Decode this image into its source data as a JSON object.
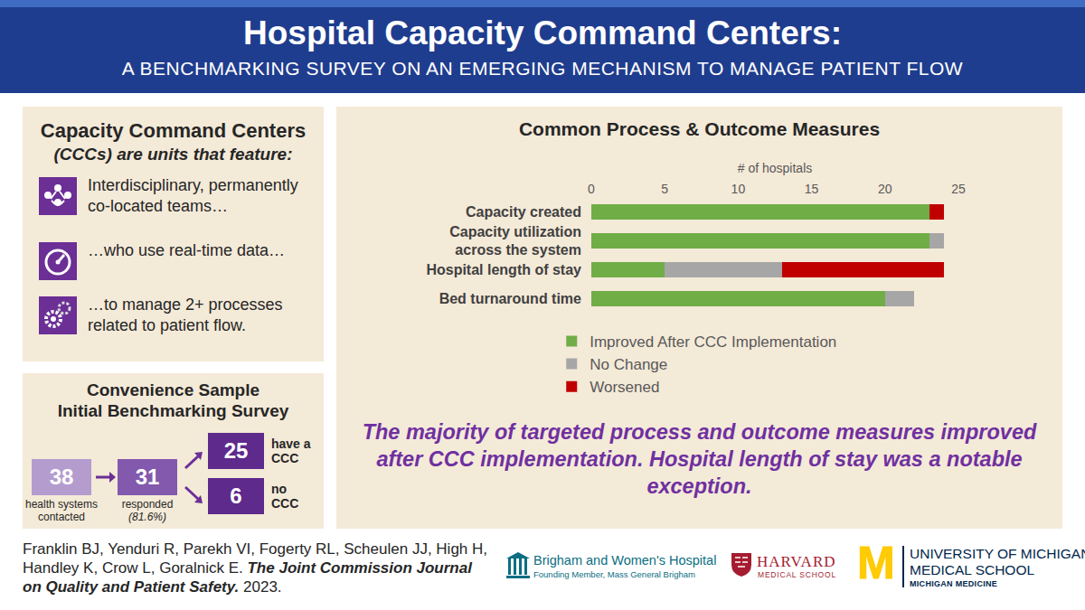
{
  "header": {
    "title": "Hospital Capacity Command Centers:",
    "subtitle": "A BENCHMARKING SURVEY ON AN EMERGING MECHANISM TO MANAGE PATIENT FLOW"
  },
  "definition": {
    "title": "Capacity Command Centers",
    "subtitle": "(CCCs) are units that feature:",
    "items": [
      "Interdisciplinary, permanently co-located teams…",
      "…who use real-time data…",
      "…to manage 2+ processes related to patient flow."
    ]
  },
  "sample": {
    "title_lines": [
      "Convenience Sample",
      "Initial Benchmarking Survey"
    ],
    "contacted": {
      "value": 38,
      "label_lines": [
        "health systems",
        "contacted"
      ]
    },
    "responded": {
      "value": 31,
      "label_lines": [
        "responded",
        "(81.6%)"
      ]
    },
    "have": {
      "value": 25,
      "label_lines": [
        "have a",
        "CCC"
      ]
    },
    "none": {
      "value": 6,
      "label_lines": [
        "no",
        "CCC"
      ]
    }
  },
  "chart_data": {
    "type": "bar",
    "orientation": "horizontal",
    "stacked": true,
    "title": "Common Process & Outcome Measures",
    "xlabel": "# of hospitals",
    "categories": [
      "Capacity created",
      "Capacity utilization across the system",
      "Hospital length of stay",
      "Bed turnaround time"
    ],
    "series": [
      {
        "name": "Improved After CCC Implementation",
        "color": "#70ad47",
        "values": [
          23,
          23,
          5,
          20
        ]
      },
      {
        "name": "No Change",
        "color": "#a6a6a6",
        "values": [
          0,
          1,
          8,
          2
        ]
      },
      {
        "name": "Worsened",
        "color": "#c00000",
        "values": [
          1,
          0,
          11,
          0
        ]
      }
    ],
    "xlim": [
      0,
      25
    ],
    "xticks": [
      0,
      5,
      10,
      15,
      20,
      25
    ],
    "grid": false,
    "legend": "bottom"
  },
  "conclusion": "The majority of targeted process and outcome measures improved after CCC implementation. Hospital length of stay was a notable exception.",
  "citation": {
    "authors": "Franklin BJ, Yenduri R, Parekh VI, Fogerty RL, Scheulen JJ, High H, Handley K, Crow L, Goralnick E.",
    "journal": "The Joint Commission Journal on Quality and Patient Safety.",
    "year": 2023
  },
  "logos": {
    "brigham": {
      "name": "Brigham and Women's Hospital",
      "sub": "Founding Member, Mass General Brigham"
    },
    "harvard": {
      "name": "HARVARD",
      "sub": "MEDICAL SCHOOL"
    },
    "michigan": {
      "mark": "M",
      "name": "UNIVERSITY OF MICHIGAN",
      "sub": "MEDICAL SCHOOL",
      "sub2": "MICHIGAN MEDICINE"
    }
  }
}
